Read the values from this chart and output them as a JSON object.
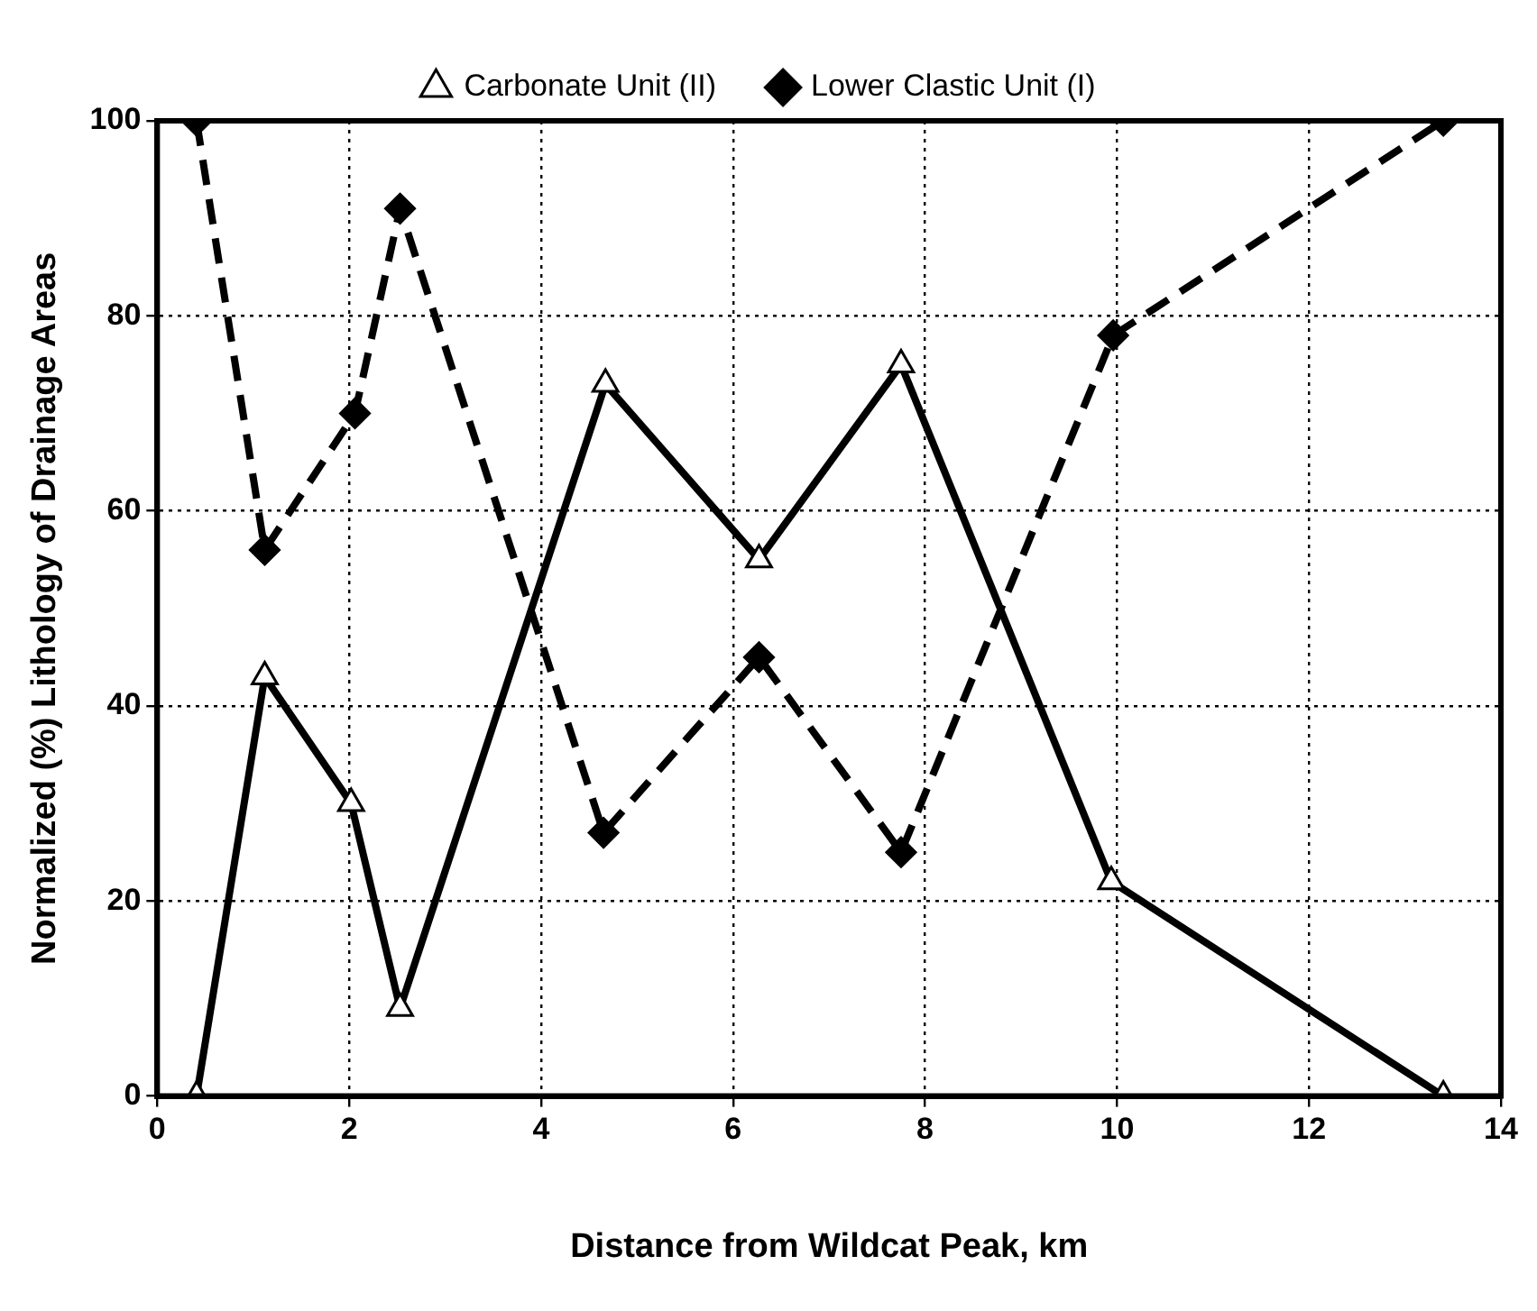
{
  "chart_data": {
    "type": "line",
    "xlabel": "Distance from Wildcat Peak, km",
    "ylabel": "Normalized (%) Lithology of Drainage Areas",
    "series": [
      {
        "name": "Carbonate Unit (II)",
        "color": "#000000",
        "marker": "triangle",
        "line_style": "solid",
        "x": [
          0.41,
          1.12,
          2.02,
          2.53,
          4.67,
          6.27,
          7.75,
          9.94,
          13.4
        ],
        "values": [
          0,
          43,
          30,
          9,
          73,
          55,
          75,
          22,
          0
        ]
      },
      {
        "name": "Lower Clastic Unit (I)",
        "color": "#000000",
        "marker": "diamond",
        "line_style": "dashed",
        "x": [
          0.41,
          1.12,
          2.06,
          2.53,
          4.65,
          6.27,
          7.75,
          9.96,
          13.4
        ],
        "values": [
          100,
          56,
          70,
          91,
          27,
          45,
          25,
          78,
          100
        ]
      }
    ],
    "xlim": [
      0,
      14
    ],
    "xticks": [
      0,
      2,
      4,
      6,
      8,
      10,
      12,
      14
    ],
    "ylim": [
      0,
      100
    ],
    "yticks": [
      0,
      20,
      40,
      60,
      80,
      100
    ],
    "grid": true,
    "legend": "top"
  }
}
